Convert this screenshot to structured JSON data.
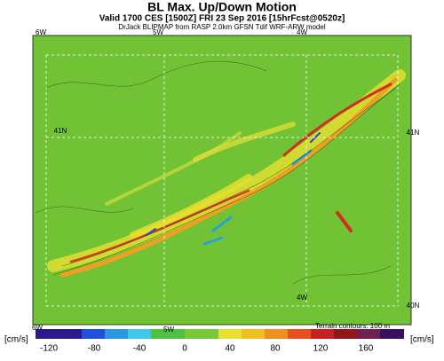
{
  "header": {
    "title": "BL Max. Up/Down Motion",
    "valid": "Valid 1700 CES [1500Z] FRI 23 Sep 2016 [15hrFcst@0520z]",
    "source": "DrJack BLIPMAP from RASP 2.0km GFSN Tdif WRF-ARW model"
  },
  "map": {
    "labels": [
      "6W",
      "5W",
      "4W",
      "41N",
      "41N",
      "40N",
      "4W",
      "6W",
      "5W"
    ]
  },
  "footer": {
    "terrain_note": "Terrain contours: 100 m"
  },
  "colorbar": {
    "unit_left": "[cm/s]",
    "unit_right": "[cm/s]",
    "ticks": [
      -120,
      -80,
      -40,
      0,
      40,
      80,
      120,
      160
    ]
  }
}
